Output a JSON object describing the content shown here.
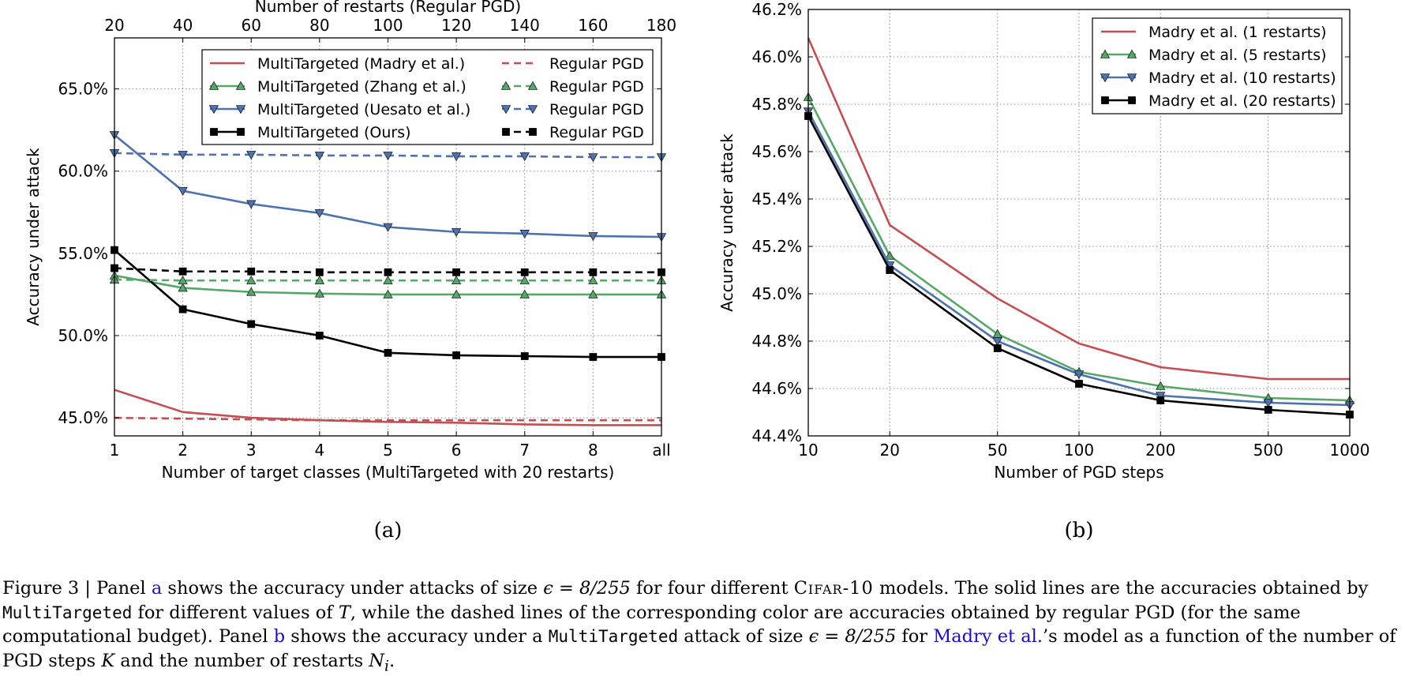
{
  "chart_data": [
    {
      "panel_label": "(a)",
      "type": "line",
      "xlabel": "Number of target classes (MultiTargeted with 20 restarts)",
      "x2label": "Number of restarts (Regular PGD)",
      "ylabel": "Accuracy under attack",
      "categories": [
        "1",
        "2",
        "3",
        "4",
        "5",
        "6",
        "7",
        "8",
        "all"
      ],
      "top_ticks": [
        "20",
        "40",
        "60",
        "80",
        "100",
        "120",
        "140",
        "160",
        "180"
      ],
      "yticks": [
        45,
        50,
        55,
        60,
        65
      ],
      "ytick_labels": [
        "45.0%",
        "50.0%",
        "55.0%",
        "60.0%",
        "65.0%"
      ],
      "ylim": [
        43.9,
        68.1
      ],
      "grid": true,
      "legend_position": "top-right",
      "series": [
        {
          "name": "MultiTargeted (Madry et al.)",
          "color": "#c44e52",
          "dashed": false,
          "marker": "none",
          "values": [
            46.7,
            45.35,
            45.0,
            44.85,
            44.75,
            44.7,
            44.6,
            44.55,
            44.55
          ]
        },
        {
          "name": "MultiTargeted (Zhang et al.)",
          "color": "#55a868",
          "dashed": false,
          "marker": "triangle-up",
          "values": [
            53.65,
            52.9,
            52.65,
            52.55,
            52.5,
            52.5,
            52.5,
            52.5,
            52.5
          ]
        },
        {
          "name": "MultiTargeted (Uesato et al.)",
          "color": "#4c72b0",
          "dashed": false,
          "marker": "triangle-down",
          "values": [
            62.2,
            58.8,
            58.0,
            57.45,
            56.6,
            56.3,
            56.2,
            56.05,
            56.0
          ]
        },
        {
          "name": "MultiTargeted (Ours)",
          "color": "#000000",
          "dashed": false,
          "marker": "square",
          "values": [
            55.2,
            51.6,
            50.7,
            50.0,
            48.95,
            48.8,
            48.75,
            48.7,
            48.7
          ]
        },
        {
          "name": "Regular PGD",
          "color": "#c44e52",
          "dashed": true,
          "marker": "none",
          "values": [
            45.0,
            44.95,
            44.9,
            44.85,
            44.85,
            44.85,
            44.85,
            44.85,
            44.85
          ]
        },
        {
          "name": "Regular PGD",
          "color": "#55a868",
          "dashed": true,
          "marker": "triangle-up",
          "values": [
            53.4,
            53.35,
            53.35,
            53.35,
            53.35,
            53.35,
            53.35,
            53.35,
            53.35
          ]
        },
        {
          "name": "Regular PGD",
          "color": "#4c72b0",
          "dashed": true,
          "marker": "triangle-down",
          "values": [
            61.1,
            61.0,
            61.0,
            60.95,
            60.95,
            60.9,
            60.9,
            60.85,
            60.85
          ]
        },
        {
          "name": "Regular PGD",
          "color": "#000000",
          "dashed": true,
          "marker": "square",
          "values": [
            54.1,
            53.9,
            53.9,
            53.85,
            53.85,
            53.85,
            53.85,
            53.85,
            53.85
          ]
        }
      ]
    },
    {
      "panel_label": "(b)",
      "type": "line",
      "xlabel": "Number of PGD steps",
      "ylabel": "Accuracy under attack",
      "categories": [
        "10",
        "20",
        "50",
        "100",
        "200",
        "500",
        "1000"
      ],
      "x": [
        10,
        20,
        50,
        100,
        200,
        500,
        1000
      ],
      "x_scale": "log",
      "xlim": [
        10,
        1000
      ],
      "yticks": [
        44.4,
        44.6,
        44.8,
        45.0,
        45.2,
        45.4,
        45.6,
        45.8,
        46.0,
        46.2
      ],
      "ytick_labels": [
        "44.4%",
        "44.6%",
        "44.8%",
        "45.0%",
        "45.2%",
        "45.4%",
        "45.6%",
        "45.8%",
        "46.0%",
        "46.2%"
      ],
      "ylim": [
        44.4,
        46.2
      ],
      "grid": true,
      "legend_position": "top-right",
      "series": [
        {
          "name": "Madry et al. (1 restarts)",
          "color": "#c44e52",
          "marker": "none",
          "values": [
            46.08,
            45.29,
            44.98,
            44.79,
            44.69,
            44.64,
            44.64
          ]
        },
        {
          "name": "Madry et al. (5 restarts)",
          "color": "#55a868",
          "marker": "triangle-up",
          "values": [
            45.83,
            45.16,
            44.83,
            44.67,
            44.61,
            44.56,
            44.55
          ]
        },
        {
          "name": "Madry et al. (10 restarts)",
          "color": "#4c72b0",
          "marker": "triangle-down",
          "values": [
            45.77,
            45.12,
            44.8,
            44.66,
            44.57,
            44.54,
            44.53
          ]
        },
        {
          "name": "Madry et al. (20 restarts)",
          "color": "#000000",
          "marker": "square",
          "values": [
            45.75,
            45.1,
            44.77,
            44.62,
            44.55,
            44.51,
            44.49
          ]
        }
      ]
    }
  ],
  "caption": {
    "label": "Figure 3 | Panel ",
    "ref_a": "a",
    "t1": " shows the accuracy under attacks of size ",
    "eq": "ϵ = 8/255",
    "t2": " for four different ",
    "dataset": "Cifar-10",
    "t3": " models. The solid lines are the accuracies obtained by ",
    "algo": "MultiTargeted",
    "t4": " for different values of ",
    "var_t": "T",
    "t5": ", while the dashed lines of the corresponding color are accuracies obtained by regular PGD (for the same computational budget). Panel ",
    "ref_b": "b",
    "t6": " shows the accuracy under a ",
    "algo2": "MultiTargeted",
    "t7": " attack of size ",
    "eq2": "ϵ = 8/255",
    "t8": " for ",
    "cite": "Madry et al.",
    "t9": "’s model as a function of the number of PGD steps ",
    "var_k": "K",
    "t10": " and the number of restarts ",
    "var_n": "N",
    "var_n_sub": "i",
    "t11": "."
  }
}
